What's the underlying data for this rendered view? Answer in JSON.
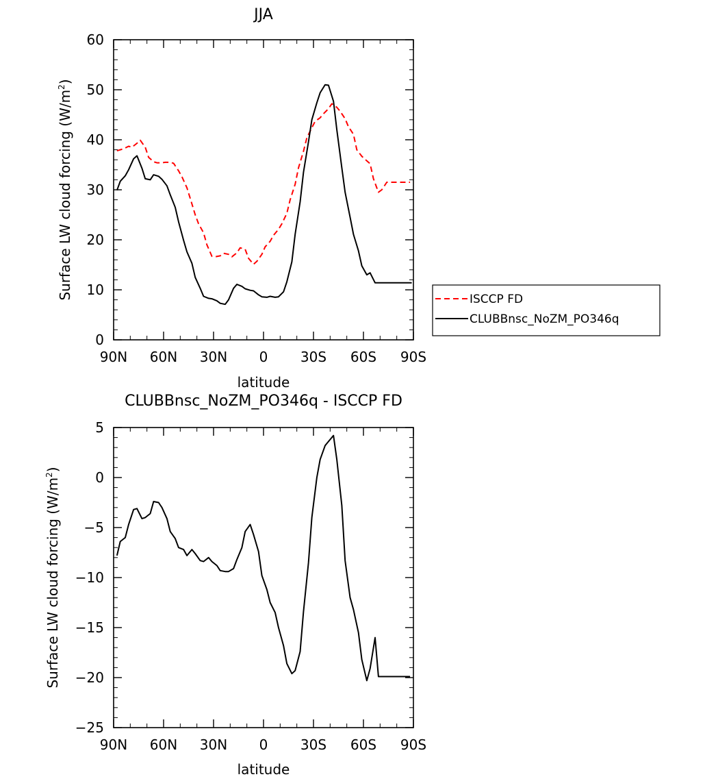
{
  "chart_data": [
    {
      "type": "line",
      "title": "JJA",
      "xlabel": "latitude",
      "ylabel": "Surface LW cloud forcing (W/m",
      "ylabel_sup": "2",
      "ylabel_end": ")",
      "xlim": [
        90,
        -90
      ],
      "ylim": [
        0,
        60
      ],
      "x_ticks": [
        {
          "value": 90,
          "label": "90N"
        },
        {
          "value": 60,
          "label": "60N"
        },
        {
          "value": 30,
          "label": "30N"
        },
        {
          "value": 0,
          "label": "0"
        },
        {
          "value": -30,
          "label": "30S"
        },
        {
          "value": -60,
          "label": "60S"
        },
        {
          "value": -90,
          "label": "90S"
        }
      ],
      "y_ticks": [
        {
          "value": 0,
          "label": "0"
        },
        {
          "value": 10,
          "label": "10"
        },
        {
          "value": 20,
          "label": "20"
        },
        {
          "value": 30,
          "label": "30"
        },
        {
          "value": 40,
          "label": "40"
        },
        {
          "value": 50,
          "label": "50"
        },
        {
          "value": 60,
          "label": "60"
        }
      ],
      "legend": "outside-right",
      "series": [
        {
          "name": "ISCCP FD",
          "color": "#ff0000",
          "dash": true,
          "x": [
            88,
            84,
            81,
            79,
            76,
            74,
            71,
            69,
            66,
            64,
            61,
            59,
            56,
            54,
            51,
            49,
            46,
            44,
            41,
            39,
            36,
            34,
            31,
            29,
            26,
            24,
            21,
            19,
            16,
            14,
            11,
            9,
            6,
            4,
            1,
            -1,
            -4,
            -6,
            -9,
            -11,
            -14,
            -16,
            -19,
            -21,
            -24,
            -26,
            -29,
            -31,
            -34,
            -36,
            -39,
            -41,
            -44,
            -46,
            -49,
            -51,
            -54,
            -56,
            -59,
            -61,
            -64,
            -66,
            -69,
            -71,
            -74,
            -76,
            -79,
            -81,
            -84,
            -86,
            -88
          ],
          "values": [
            37.8,
            38.2,
            38.7,
            38.5,
            39.3,
            39.9,
            38.5,
            36.5,
            35.6,
            35.4,
            35.4,
            35.5,
            35.5,
            35.3,
            33.8,
            32.6,
            30.4,
            28.3,
            25.0,
            23.2,
            21.4,
            19.0,
            16.7,
            16.6,
            16.8,
            17.3,
            17.1,
            16.6,
            17.4,
            18.4,
            18.1,
            16.3,
            15.1,
            15.7,
            17.1,
            18.6,
            19.7,
            20.9,
            22.1,
            23.2,
            25.3,
            28.0,
            31.1,
            34.4,
            37.7,
            40.4,
            42.4,
            43.7,
            44.4,
            45.2,
            46.2,
            47.2,
            46.5,
            45.7,
            44.2,
            42.6,
            41.1,
            38.0,
            36.7,
            36.1,
            35.2,
            32.2,
            29.5,
            30.0,
            31.5,
            31.5,
            31.5,
            31.5,
            31.5,
            31.5,
            31.5
          ]
        },
        {
          "name": "CLUBBnsc_NoZM_PO346q",
          "color": "#000000",
          "dash": false,
          "x": [
            88,
            86,
            83,
            81,
            78,
            76,
            73,
            71,
            68,
            66,
            63,
            61,
            58,
            56,
            53,
            51,
            48,
            46,
            43,
            41,
            38,
            36,
            33,
            31,
            28,
            26,
            23,
            21,
            18,
            16,
            13,
            11,
            8,
            6,
            3,
            1,
            -2,
            -4,
            -7,
            -9,
            -12,
            -14,
            -17,
            -19,
            -22,
            -24,
            -27,
            -29,
            -32,
            -34,
            -37,
            -39,
            -42,
            -44,
            -47,
            -49,
            -52,
            -54,
            -57,
            -59,
            -62,
            -64,
            -67,
            -69,
            -72,
            -74,
            -77,
            -79,
            -82,
            -84,
            -87,
            -89
          ],
          "values": [
            29.9,
            31.7,
            32.8,
            34.0,
            36.2,
            36.8,
            34.3,
            32.2,
            32.0,
            33.0,
            32.7,
            32.1,
            30.8,
            29.0,
            26.5,
            23.6,
            19.9,
            17.6,
            15.3,
            12.5,
            10.3,
            8.7,
            8.3,
            8.2,
            7.8,
            7.3,
            7.1,
            8.0,
            10.3,
            11.1,
            10.7,
            10.2,
            9.9,
            9.8,
            9.0,
            8.6,
            8.5,
            8.7,
            8.5,
            8.6,
            9.6,
            11.6,
            15.6,
            21.1,
            27.6,
            33.5,
            39.6,
            44.0,
            47.4,
            49.4,
            51.0,
            50.9,
            47.7,
            42.0,
            34.4,
            29.5,
            24.5,
            21.1,
            17.8,
            14.8,
            13.0,
            13.4,
            11.4,
            11.4,
            11.4,
            11.4,
            11.4,
            11.4,
            11.4,
            11.4,
            11.4,
            11.4
          ]
        }
      ]
    },
    {
      "type": "line",
      "title": "CLUBBnsc_NoZM_PO346q - ISCCP FD",
      "xlabel": "latitude",
      "ylabel": "Surface LW cloud forcing (W/m",
      "ylabel_sup": "2",
      "ylabel_end": ")",
      "xlim": [
        90,
        -90
      ],
      "ylim": [
        -25,
        5
      ],
      "x_ticks": [
        {
          "value": 90,
          "label": "90N"
        },
        {
          "value": 60,
          "label": "60N"
        },
        {
          "value": 30,
          "label": "30N"
        },
        {
          "value": 0,
          "label": "0"
        },
        {
          "value": -30,
          "label": "30S"
        },
        {
          "value": -60,
          "label": "60S"
        },
        {
          "value": -90,
          "label": "90S"
        }
      ],
      "y_ticks": [
        {
          "value": 5,
          "label": "5"
        },
        {
          "value": 0,
          "label": "0"
        },
        {
          "value": -5,
          "label": "−5"
        },
        {
          "value": -10,
          "label": "−10"
        },
        {
          "value": -15,
          "label": "−15"
        },
        {
          "value": -20,
          "label": "−20"
        },
        {
          "value": -25,
          "label": "−25"
        }
      ],
      "series": [
        {
          "name": "",
          "color": "#000000",
          "dash": false,
          "x": [
            88,
            86,
            83,
            81,
            78,
            76,
            73,
            71,
            68,
            66,
            63,
            61,
            58,
            56,
            53,
            51,
            48,
            46,
            43,
            41,
            38,
            36,
            33,
            31,
            28,
            26,
            23,
            21,
            18,
            16,
            13,
            11,
            8,
            6,
            3,
            1,
            -2,
            -4,
            -7,
            -9,
            -12,
            -14,
            -17,
            -19,
            -22,
            -24,
            -27,
            -29,
            -32,
            -34,
            -37,
            -39,
            -42,
            -44,
            -47,
            -49,
            -52,
            -54,
            -57,
            -59,
            -62,
            -64,
            -67,
            -69,
            -72,
            -74,
            -77,
            -79,
            -82,
            -84,
            -87,
            -88
          ],
          "values": [
            -7.8,
            -6.4,
            -6.0,
            -4.7,
            -3.2,
            -3.1,
            -4.1,
            -4.0,
            -3.6,
            -2.4,
            -2.5,
            -3.0,
            -4.1,
            -5.4,
            -6.1,
            -7.0,
            -7.2,
            -7.8,
            -7.2,
            -7.6,
            -8.3,
            -8.4,
            -8.0,
            -8.4,
            -8.8,
            -9.3,
            -9.4,
            -9.4,
            -9.1,
            -8.2,
            -7.0,
            -5.4,
            -4.7,
            -5.7,
            -7.4,
            -9.8,
            -11.2,
            -12.5,
            -13.5,
            -15.0,
            -16.8,
            -18.6,
            -19.6,
            -19.3,
            -17.4,
            -13.4,
            -8.5,
            -4.0,
            0.0,
            1.8,
            3.2,
            3.6,
            4.2,
            1.8,
            -2.8,
            -8.3,
            -12.0,
            -13.2,
            -15.5,
            -18.2,
            -20.3,
            -19.1,
            -16.0,
            -19.9,
            -19.9,
            -19.9,
            -19.9,
            -19.9,
            -19.9,
            -19.9,
            -19.9,
            -19.9
          ]
        }
      ]
    }
  ]
}
